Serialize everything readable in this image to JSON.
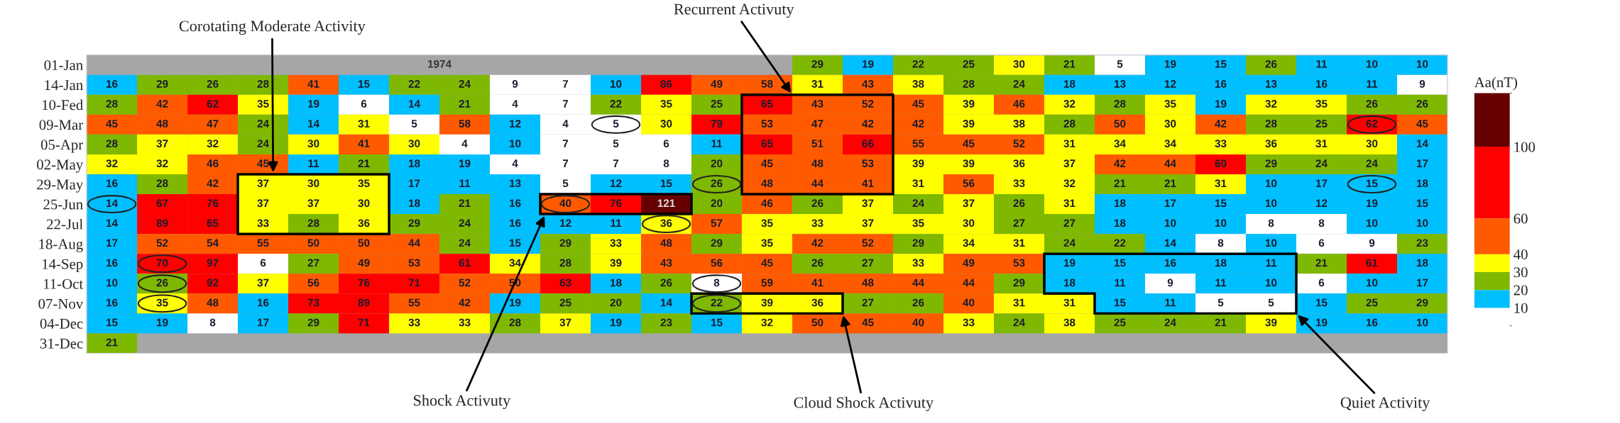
{
  "chart_data": {
    "type": "heatmap",
    "categories": [
      null,
      null,
      null,
      null,
      null,
      null,
      null,
      null,
      null,
      null,
      null,
      null,
      null,
      null,
      null,
      null,
      null,
      null,
      null,
      null,
      null,
      null,
      null,
      null,
      null,
      null,
      null
    ],
    "y_categories": [
      "01-Jan",
      "14-Jan",
      "10-Fed",
      "09-Mar",
      "05-Apr",
      "02-May",
      "29-May",
      "25-Jun",
      "22-Jul",
      "18-Aug",
      "14-Sep",
      "11-Oct",
      "07-Nov",
      "04-Dec",
      "31-Dec"
    ],
    "cells": [
      [
        null,
        null,
        null,
        null,
        null,
        null,
        null,
        null,
        null,
        null,
        null,
        null,
        null,
        null,
        29,
        19,
        22,
        25,
        30,
        21,
        5,
        19,
        15,
        26,
        11,
        10,
        10
      ],
      [
        16,
        29,
        26,
        28,
        41,
        15,
        22,
        24,
        9,
        7,
        10,
        86,
        49,
        58,
        31,
        43,
        38,
        28,
        24,
        18,
        13,
        12,
        16,
        13,
        16,
        11,
        9
      ],
      [
        28,
        42,
        62,
        35,
        19,
        6,
        14,
        21,
        4,
        7,
        22,
        35,
        25,
        65,
        43,
        52,
        45,
        39,
        46,
        32,
        28,
        35,
        19,
        32,
        35,
        26,
        26
      ],
      [
        45,
        48,
        47,
        24,
        14,
        31,
        5,
        58,
        12,
        4,
        5,
        30,
        79,
        53,
        47,
        42,
        42,
        39,
        38,
        28,
        50,
        30,
        42,
        28,
        25,
        62,
        45
      ],
      [
        28,
        37,
        32,
        24,
        30,
        41,
        30,
        4,
        10,
        7,
        5,
        6,
        11,
        65,
        51,
        66,
        55,
        45,
        52,
        31,
        34,
        34,
        33,
        36,
        31,
        30,
        14
      ],
      [
        32,
        32,
        46,
        45,
        11,
        21,
        18,
        19,
        4,
        7,
        7,
        8,
        20,
        45,
        48,
        53,
        39,
        39,
        36,
        37,
        42,
        44,
        60,
        29,
        24,
        24,
        17
      ],
      [
        16,
        28,
        42,
        37,
        30,
        35,
        17,
        11,
        13,
        5,
        12,
        15,
        26,
        48,
        44,
        41,
        31,
        56,
        33,
        32,
        21,
        21,
        31,
        10,
        17,
        15,
        18
      ],
      [
        14,
        67,
        76,
        37,
        37,
        30,
        18,
        21,
        16,
        40,
        76,
        121,
        20,
        46,
        26,
        37,
        24,
        37,
        26,
        31,
        18,
        17,
        15,
        10,
        12,
        19,
        15
      ],
      [
        14,
        89,
        65,
        33,
        28,
        36,
        29,
        24,
        16,
        12,
        11,
        36,
        57,
        35,
        33,
        37,
        35,
        30,
        27,
        27,
        18,
        10,
        10,
        8,
        8,
        10,
        10
      ],
      [
        17,
        52,
        54,
        55,
        50,
        50,
        44,
        24,
        15,
        29,
        33,
        48,
        29,
        35,
        42,
        52,
        29,
        34,
        31,
        24,
        22,
        14,
        8,
        10,
        6,
        9,
        23
      ],
      [
        16,
        70,
        97,
        6,
        27,
        49,
        53,
        61,
        34,
        28,
        39,
        43,
        56,
        45,
        26,
        27,
        33,
        49,
        53,
        19,
        15,
        16,
        18,
        11,
        21,
        61,
        18
      ],
      [
        10,
        26,
        92,
        37,
        56,
        76,
        71,
        52,
        50,
        63,
        18,
        26,
        8,
        59,
        41,
        48,
        44,
        44,
        29,
        18,
        11,
        9,
        11,
        10,
        6,
        10,
        17
      ],
      [
        16,
        35,
        48,
        16,
        73,
        89,
        55,
        42,
        19,
        25,
        20,
        14,
        22,
        39,
        36,
        27,
        26,
        40,
        31,
        31,
        15,
        11,
        5,
        5,
        15,
        25,
        29
      ],
      [
        15,
        19,
        8,
        17,
        29,
        71,
        33,
        33,
        28,
        37,
        19,
        23,
        15,
        32,
        50,
        45,
        40,
        33,
        24,
        38,
        25,
        24,
        21,
        39,
        19,
        16,
        10
      ],
      [
        21,
        null,
        null,
        null,
        null,
        null,
        null,
        null,
        null,
        null,
        null,
        null,
        null,
        null,
        null,
        null,
        null,
        null,
        null,
        null,
        null,
        null,
        null,
        null,
        null,
        null,
        null
      ]
    ],
    "clim": [
      0,
      130
    ],
    "cticks": [
      10,
      20,
      30,
      40,
      60,
      100
    ],
    "colors": [
      "#ffffff",
      "#00bfff",
      "#7fb800",
      "#ffff00",
      "#ff5a00",
      "#ff0000",
      "#660000"
    ],
    "clabel": "Aa(nT)",
    "data_labels": true,
    "tick_labels": "y",
    "annotations": [
      "1974",
      "Corotating Moderate Activity",
      "Recurrent Activuty",
      "Shock Activuty",
      "Cloud Shock Activuty",
      "Quiet Activity"
    ]
  }
}
